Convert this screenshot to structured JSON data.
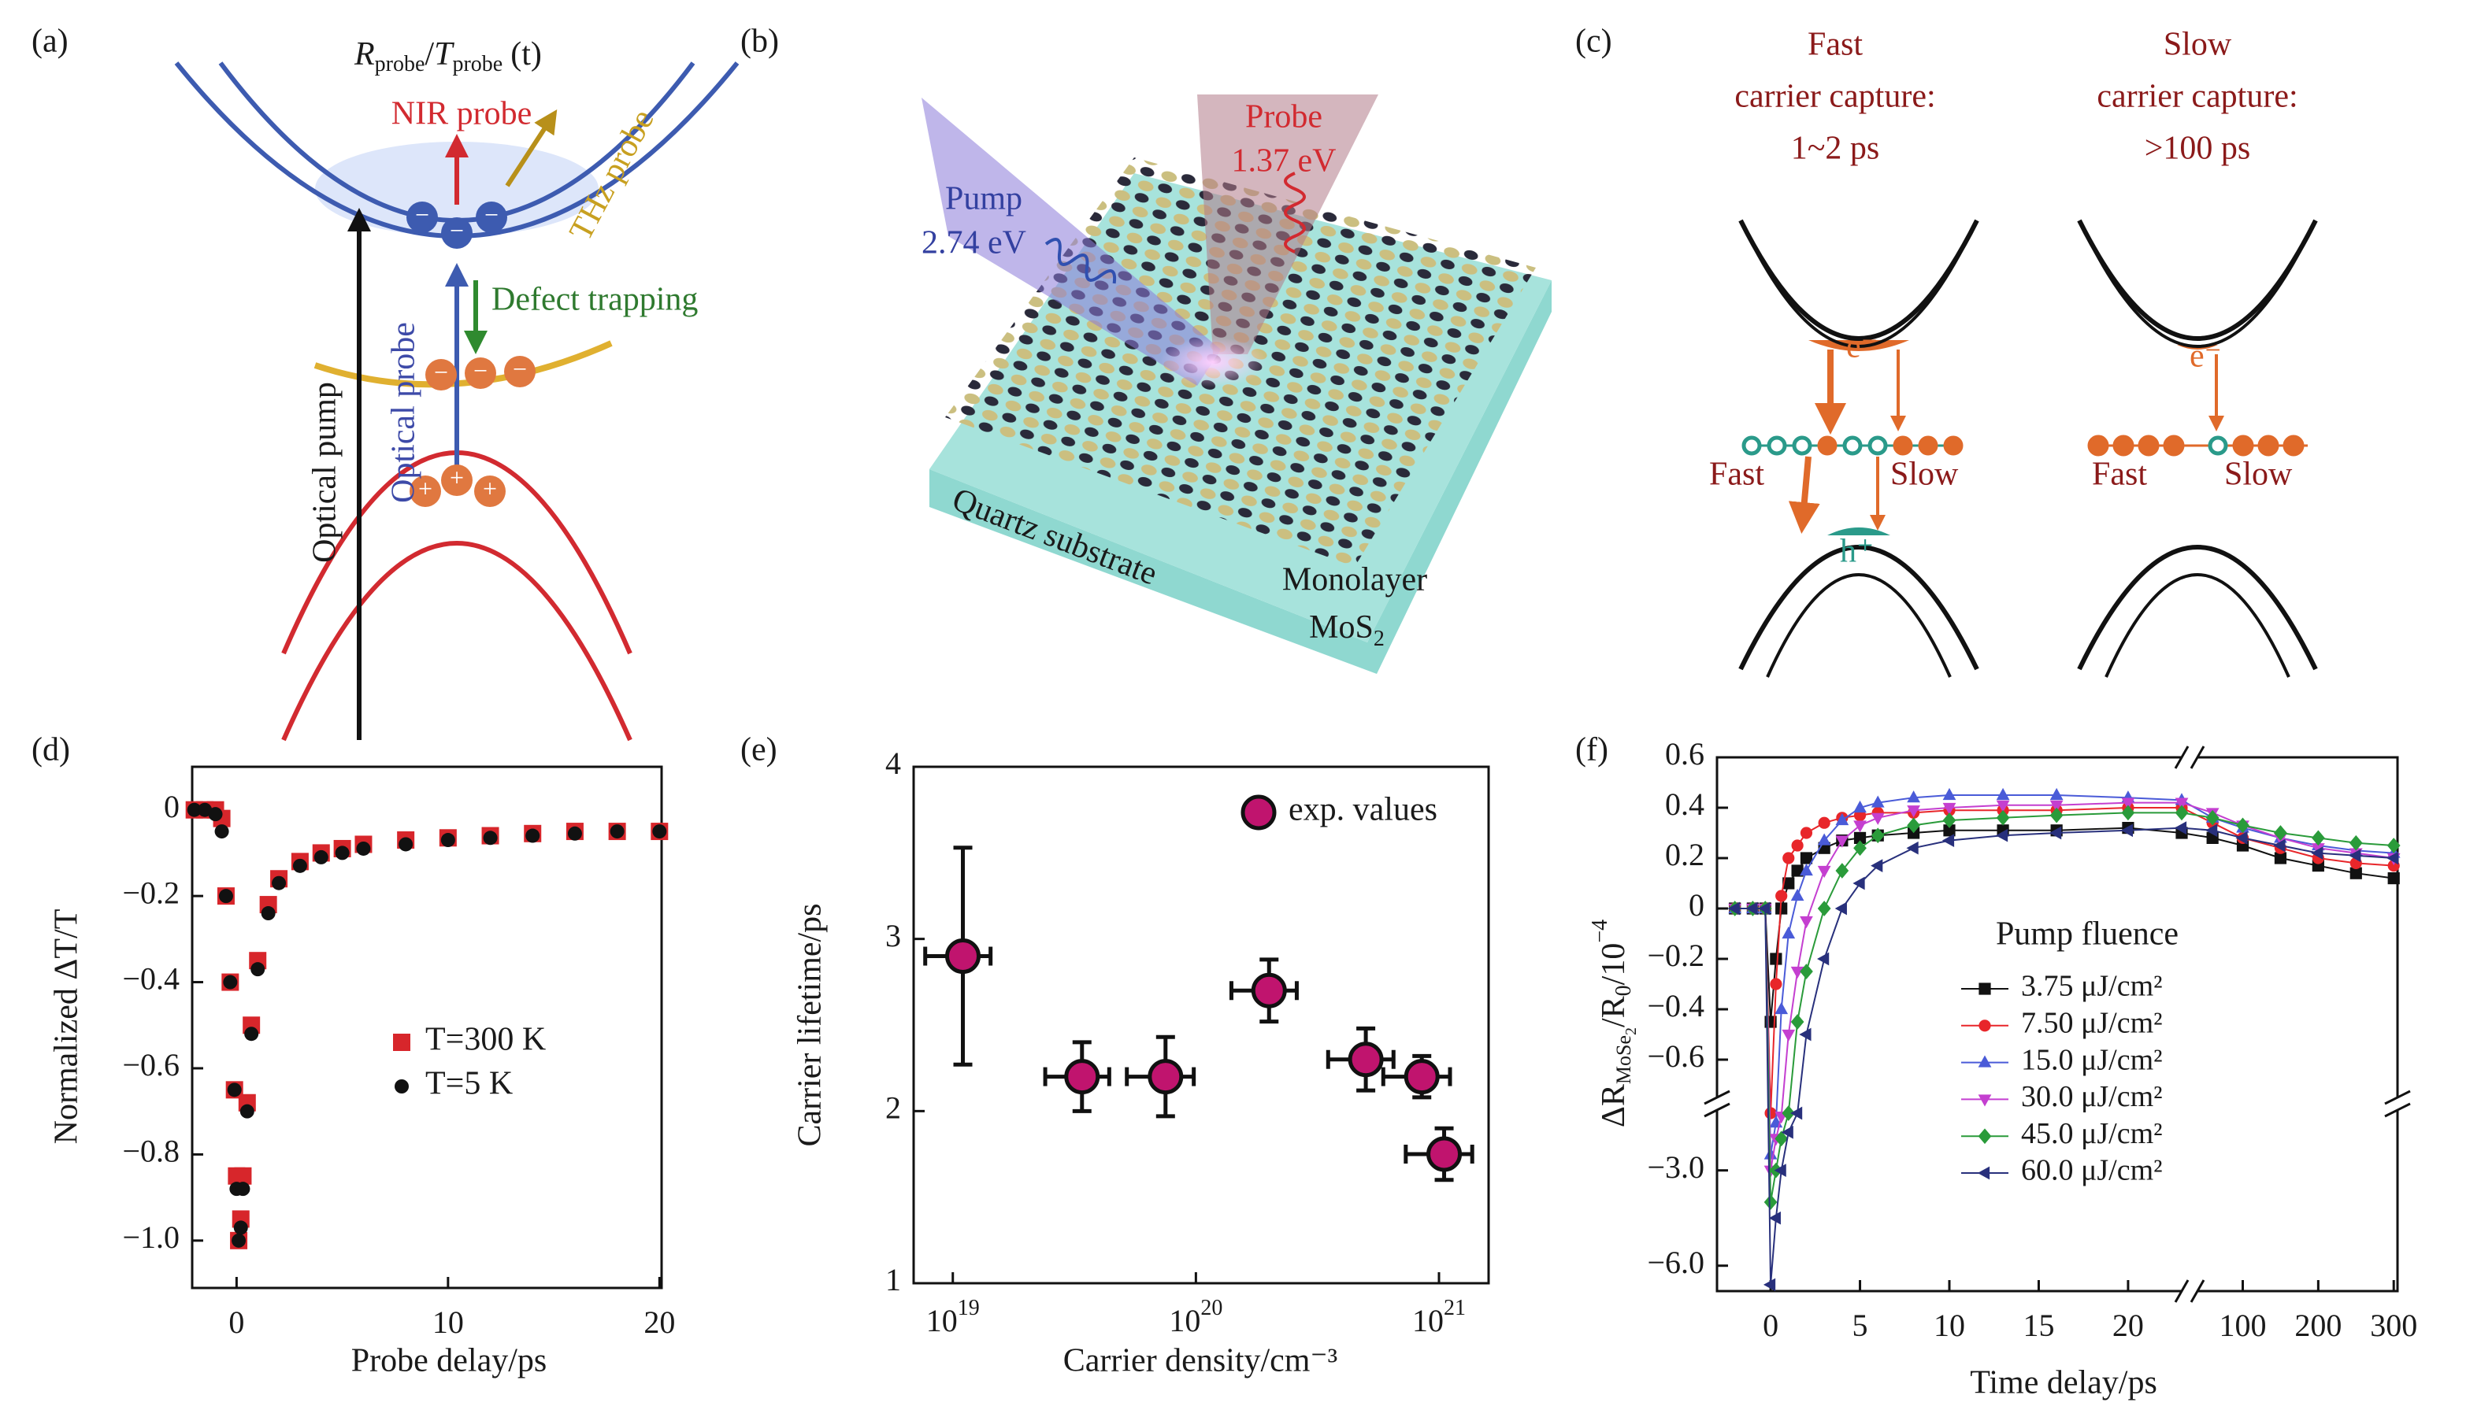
{
  "panel_labels": [
    "(a)",
    "(b)",
    "(c)",
    "(d)",
    "(e)",
    "(f)"
  ],
  "diagram_a": {
    "title": [
      "R",
      "probe",
      "/",
      "T",
      "probe",
      "(t)"
    ],
    "nir_probe": "NIR probe",
    "thz_probe": "THz probe",
    "defect_trapping": "Defect trapping",
    "optical_pump": "Optical pump",
    "optical_probe": "Optical probe",
    "electron_sign": "−",
    "hole_sign": "+"
  },
  "diagram_b": {
    "pump": "Pump",
    "pump_energy": "2.74 eV",
    "probe": "Probe",
    "probe_energy": "1.37 eV",
    "substrate": "Quartz substrate",
    "monolayer": "Monolayer",
    "material": [
      "MoS",
      "2"
    ]
  },
  "diagram_c": {
    "fast_title": [
      "Fast",
      "carrier capture:",
      "1~2 ps"
    ],
    "slow_title": [
      "Slow",
      "carrier capture:",
      ">100 ps"
    ],
    "electron": "e⁻",
    "hole": "h⁺",
    "fast_label": "Fast",
    "slow_label": "Slow"
  },
  "chart_data": [
    {
      "type": "scatter",
      "xlabel": "Probe delay/ps",
      "ylabel": "Normalized ΔT/T",
      "x": [
        -2,
        -1.5,
        -1,
        -0.7,
        -0.5,
        -0.3,
        -0.1,
        0,
        0.1,
        0.2,
        0.3,
        0.5,
        0.7,
        1,
        1.5,
        2,
        3,
        4,
        5,
        6,
        8,
        10,
        12,
        14,
        16,
        18,
        20
      ],
      "series": [
        {
          "name": "T=300 K",
          "color": "#d7262b",
          "marker": "square",
          "values": [
            0,
            0,
            0,
            -0.02,
            -0.2,
            -0.4,
            -0.65,
            -0.85,
            -1.0,
            -0.95,
            -0.85,
            -0.68,
            -0.5,
            -0.35,
            -0.22,
            -0.16,
            -0.12,
            -0.1,
            -0.09,
            -0.08,
            -0.07,
            -0.065,
            -0.06,
            -0.055,
            -0.05,
            -0.05,
            -0.05
          ]
        },
        {
          "name": "T=5 K",
          "color": "#111111",
          "marker": "circle",
          "values": [
            0,
            0,
            -0.01,
            -0.05,
            -0.2,
            -0.4,
            -0.65,
            -0.88,
            -1.0,
            -0.97,
            -0.88,
            -0.7,
            -0.52,
            -0.37,
            -0.24,
            -0.17,
            -0.13,
            -0.11,
            -0.1,
            -0.09,
            -0.08,
            -0.07,
            -0.065,
            -0.06,
            -0.055,
            -0.05,
            -0.05
          ]
        }
      ],
      "xlim": [
        -2.1,
        20.1
      ],
      "ylim": [
        -1.11,
        0.1
      ],
      "xticks": [
        0,
        10,
        20
      ],
      "yticks": [
        0,
        {
          "value": -0.2,
          "label": "−0.2"
        },
        {
          "value": -0.4,
          "label": "−0.4"
        },
        {
          "value": -0.6,
          "label": "−0.6"
        },
        {
          "value": -0.8,
          "label": "−0.8"
        },
        {
          "value": -1.0,
          "label": "−1.0"
        }
      ],
      "legend": "lower right"
    },
    {
      "type": "scatter",
      "xlabel": "Carrier density/cm⁻³",
      "ylabel": "Carrier lifetime/ps",
      "xscale": "log",
      "x": [
        1.1e+19,
        3.4e+19,
        7.5e+19,
        2e+20,
        5e+20,
        8.5e+20,
        1.05e+21
      ],
      "series": [
        {
          "name": "exp. values",
          "color": "#c0146e",
          "marker": "circle",
          "values": [
            2.9,
            2.2,
            2.2,
            2.7,
            2.3,
            2.2,
            1.75
          ],
          "errors": [
            0.63,
            0.2,
            0.23,
            0.18,
            0.18,
            0.12,
            0.15
          ],
          "xerr": [
            3.3e+18,
            1e+19,
            2.3e+19,
            6e+19,
            1.5e+20,
            2.6e+20,
            3.2e+20
          ]
        }
      ],
      "xlim": [
        6.9e+18,
        1.6e+21
      ],
      "ylim": [
        1,
        4
      ],
      "xticks": [
        {
          "value": 1e+19,
          "label": "10",
          "sup": "19"
        },
        {
          "value": 1e+20,
          "label": "10",
          "sup": "20"
        },
        {
          "value": 1e+21,
          "label": "10",
          "sup": "21"
        }
      ],
      "yticks": [
        1,
        2,
        3,
        4
      ],
      "legend": "upper right"
    },
    {
      "type": "line",
      "xlabel": "Time delay/ps",
      "ylabel": [
        "ΔR",
        "MoSe",
        "2",
        "/R",
        "0",
        "/10",
        "−4"
      ],
      "legend_title": "Pump fluence",
      "x": [
        -2,
        -1,
        -0.3,
        0,
        0.3,
        0.6,
        1,
        1.5,
        2,
        3,
        4,
        5,
        6,
        8,
        10,
        13,
        16,
        20,
        23,
        60,
        100,
        150,
        200,
        250,
        300
      ],
      "series": [
        {
          "name": "3.75 μJ/cm²",
          "color": "#111111",
          "marker": "square",
          "values": [
            0,
            0,
            0,
            -0.45,
            -0.2,
            0,
            0.1,
            0.15,
            0.2,
            0.24,
            0.27,
            0.28,
            0.29,
            0.3,
            0.31,
            0.31,
            0.31,
            0.32,
            0.3,
            0.28,
            0.25,
            0.2,
            0.17,
            0.14,
            0.12
          ]
        },
        {
          "name": "7.50 μJ/cm²",
          "color": "#e8262a",
          "marker": "circle",
          "values": [
            0,
            0,
            0,
            -1.2,
            -0.3,
            0.05,
            0.2,
            0.25,
            0.3,
            0.34,
            0.36,
            0.37,
            0.38,
            0.38,
            0.39,
            0.39,
            0.39,
            0.4,
            0.4,
            0.34,
            0.28,
            0.24,
            0.2,
            0.18,
            0.17
          ]
        },
        {
          "name": "15.0 μJ/cm²",
          "color": "#4a5bd8",
          "marker": "triangle-up",
          "values": [
            0,
            0,
            0,
            -2.5,
            -1.5,
            -0.4,
            -0.1,
            0.05,
            0.15,
            0.27,
            0.35,
            0.4,
            0.42,
            0.44,
            0.45,
            0.45,
            0.45,
            0.44,
            0.43,
            0.36,
            0.32,
            0.28,
            0.25,
            0.23,
            0.22
          ]
        },
        {
          "name": "30.0 μJ/cm²",
          "color": "#c43fd0",
          "marker": "triangle-down",
          "values": [
            0,
            0,
            0,
            -3.0,
            -2.0,
            -1.3,
            -0.5,
            -0.25,
            -0.05,
            0.15,
            0.27,
            0.33,
            0.36,
            0.39,
            0.4,
            0.41,
            0.41,
            0.42,
            0.42,
            0.38,
            0.33,
            0.28,
            0.24,
            0.22,
            0.2
          ]
        },
        {
          "name": "45.0 μJ/cm²",
          "color": "#2a9b3a",
          "marker": "diamond",
          "values": [
            0,
            0,
            0,
            -4.0,
            -3.0,
            -2.0,
            -1.2,
            -0.45,
            -0.25,
            0,
            0.15,
            0.24,
            0.29,
            0.33,
            0.35,
            0.36,
            0.37,
            0.38,
            0.38,
            0.36,
            0.33,
            0.3,
            0.28,
            0.26,
            0.25
          ]
        },
        {
          "name": "60.0 μJ/cm²",
          "color": "#28307c",
          "marker": "triangle-left",
          "values": [
            0,
            0,
            0,
            -6.6,
            -4.5,
            -3.0,
            -1.8,
            -1.2,
            -0.5,
            -0.2,
            0,
            0.1,
            0.17,
            0.24,
            0.27,
            0.29,
            0.3,
            0.31,
            0.32,
            0.31,
            0.28,
            0.25,
            0.22,
            0.21,
            0.2
          ]
        }
      ],
      "xlim": [
        -3,
        305
      ],
      "xbreak": [
        23,
        40
      ],
      "ylim": [
        -6.8,
        0.6
      ],
      "ybreak": [
        -1.1,
        -0.75
      ],
      "xticks": [
        0,
        5,
        10,
        15,
        20,
        100,
        200,
        300
      ],
      "yticks": [
        0.6,
        0.4,
        0.2,
        0,
        {
          "value": -0.2,
          "label": "−0.2"
        },
        {
          "value": -0.4,
          "label": "−0.4"
        },
        {
          "value": -0.6,
          "label": "−0.6"
        },
        {
          "value": -3,
          "label": "−3.0"
        },
        {
          "value": -6,
          "label": "−6.0"
        }
      ],
      "legend": "lower center"
    }
  ]
}
